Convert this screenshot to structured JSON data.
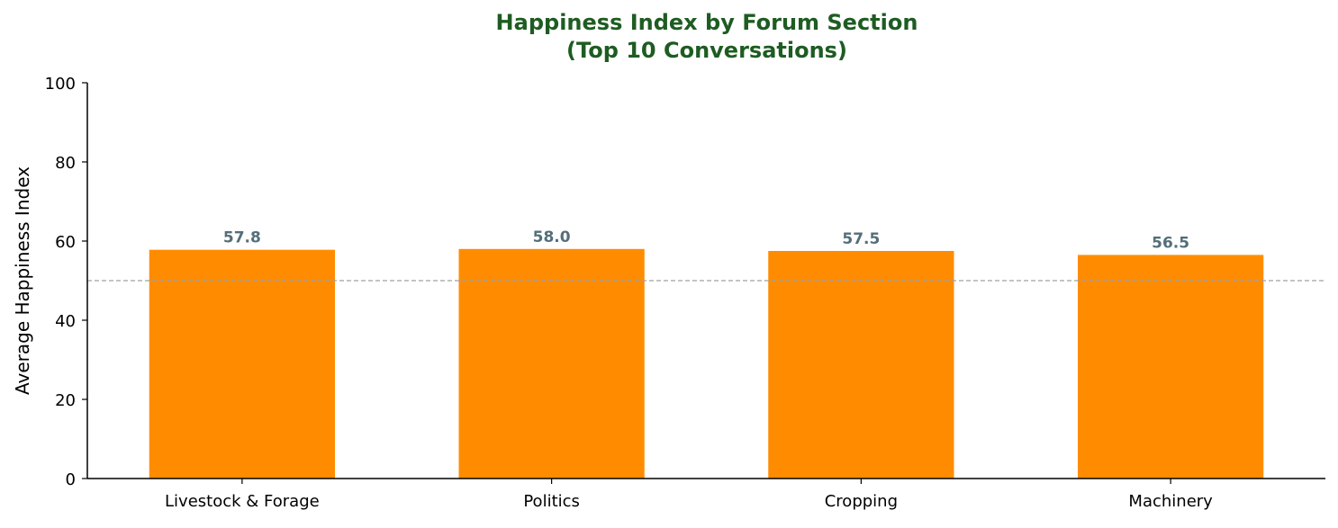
{
  "chart_data": {
    "type": "bar",
    "title_lines": [
      "Happiness Index by Forum Section",
      "(Top 10 Conversations)"
    ],
    "xlabel": "",
    "ylabel": "Average Happiness Index",
    "categories": [
      "Livestock & Forage",
      "Politics",
      "Cropping",
      "Machinery"
    ],
    "values": [
      57.8,
      58.0,
      57.5,
      56.5
    ],
    "value_labels": [
      "57.8",
      "58.0",
      "57.5",
      "56.5"
    ],
    "ylim": [
      0,
      100
    ],
    "yticks": [
      0,
      20,
      40,
      60,
      80,
      100
    ],
    "reference_line": 50,
    "grid": false,
    "legend": "none",
    "colors": {
      "bar": "#ff8c00",
      "title": "#1e5c22",
      "value_label": "#546e7a",
      "reference_line": "#a0a0a0",
      "axis": "#000000"
    }
  }
}
